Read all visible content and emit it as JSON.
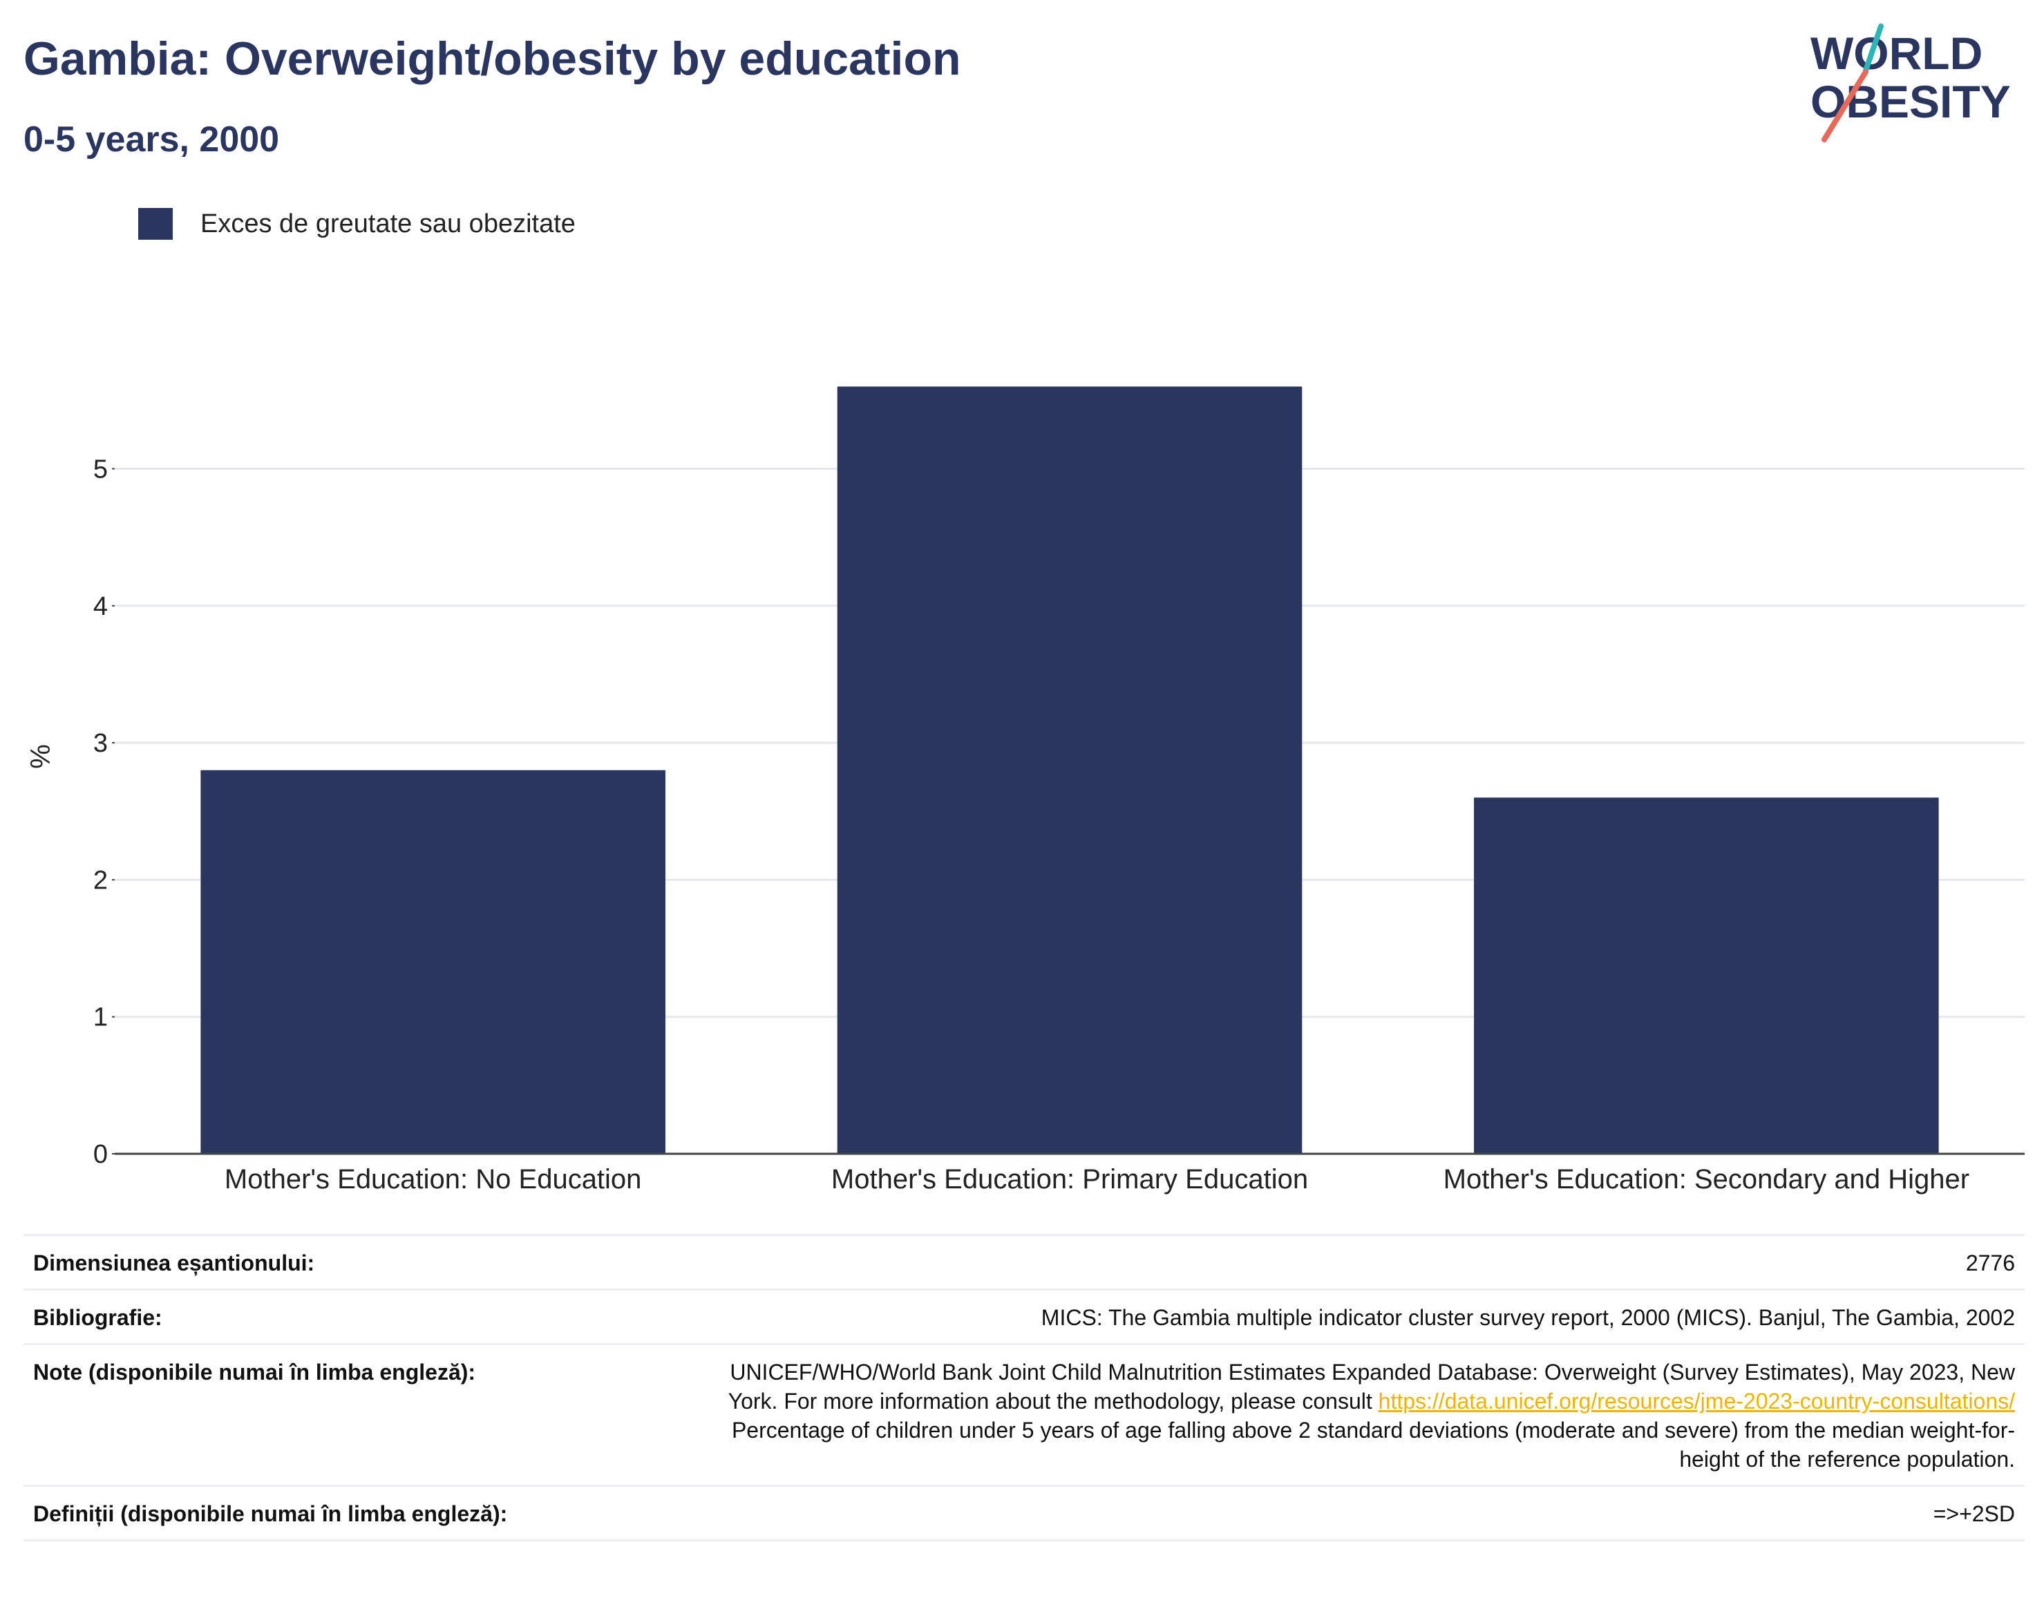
{
  "header": {
    "title": "Gambia: Overweight/obesity by education",
    "subtitle": "0-5 years, 2000"
  },
  "logo": {
    "line1": "WORLD",
    "line2": "OBESITY",
    "accent_colors": [
      "#2bb5b5",
      "#e8685a"
    ]
  },
  "legend": {
    "label": "Exces de greutate sau obezitate",
    "color": "#2a365f"
  },
  "chart_data": {
    "type": "bar",
    "title": "Gambia: Overweight/obesity by education",
    "subtitle": "0-5 years, 2000",
    "categories": [
      "Mother's Education: No Education",
      "Mother's Education: Primary Education",
      "Mother's Education: Secondary and Higher"
    ],
    "series": [
      {
        "name": "Exces de greutate sau obezitate",
        "values": [
          2.8,
          5.6,
          2.6
        ],
        "color": "#2a365f"
      }
    ],
    "xlabel": "",
    "ylabel": "%",
    "ylim": [
      0,
      5.9
    ],
    "yticks": [
      0,
      1,
      2,
      3,
      4,
      5
    ],
    "grid": true,
    "legend_position": "top-left"
  },
  "info": {
    "sample_size_label": "Dimensiunea eșantionului:",
    "sample_size_value": "2776",
    "bibliography_label": "Bibliografie:",
    "bibliography_value": "MICS: The Gambia multiple indicator cluster survey report, 2000 (MICS). Banjul, The Gambia, 2002",
    "notes_label": "Note (disponibile numai în limba engleză):",
    "notes_line1": "UNICEF/WHO/World Bank Joint Child Malnutrition Estimates Expanded Database: Overweight (Survey Estimates), May 2023, New",
    "notes_line2_prefix": "York. For more information about the methodology, please consult ",
    "notes_link": "https://data.unicef.org/resources/jme-2023-country-consultations/",
    "notes_line3": "Percentage of children under 5 years of age falling above 2 standard deviations (moderate and severe) from the median weight-for-",
    "notes_line4": "height of the reference population.",
    "definitions_label": "Definiții (disponibile numai în limba engleză):",
    "definitions_value": "=>+2SD"
  }
}
